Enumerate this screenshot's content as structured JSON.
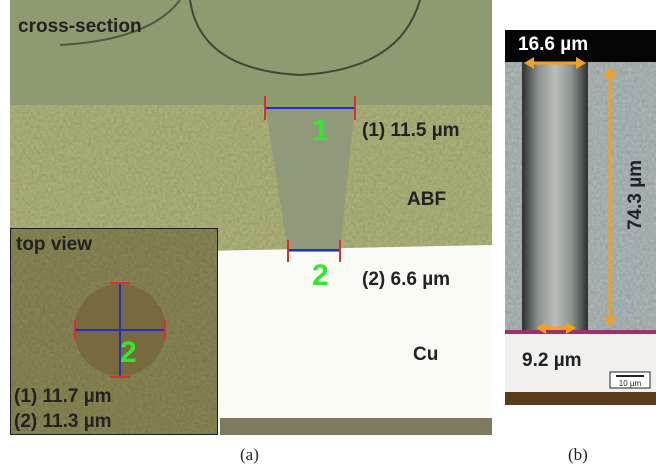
{
  "panel_a": {
    "cross_section_label": "cross-section",
    "marker_1": "1",
    "marker_2": "2",
    "measurement_1": "(1) 11.5 µm",
    "measurement_2": "(2) 6.6 µm",
    "material_abf": "ABF",
    "material_cu": "Cu",
    "inset": {
      "label": "top view",
      "marker": "2",
      "measurement_1": "(1) 11.7 µm",
      "measurement_2": "(2) 11.3 µm"
    },
    "caption": "(a)"
  },
  "panel_b": {
    "top_width": "16.6 µm",
    "depth": "74.3 µm",
    "bottom_width": "9.2 µm",
    "scale_bar": "10 µm",
    "caption": "(b)"
  }
}
